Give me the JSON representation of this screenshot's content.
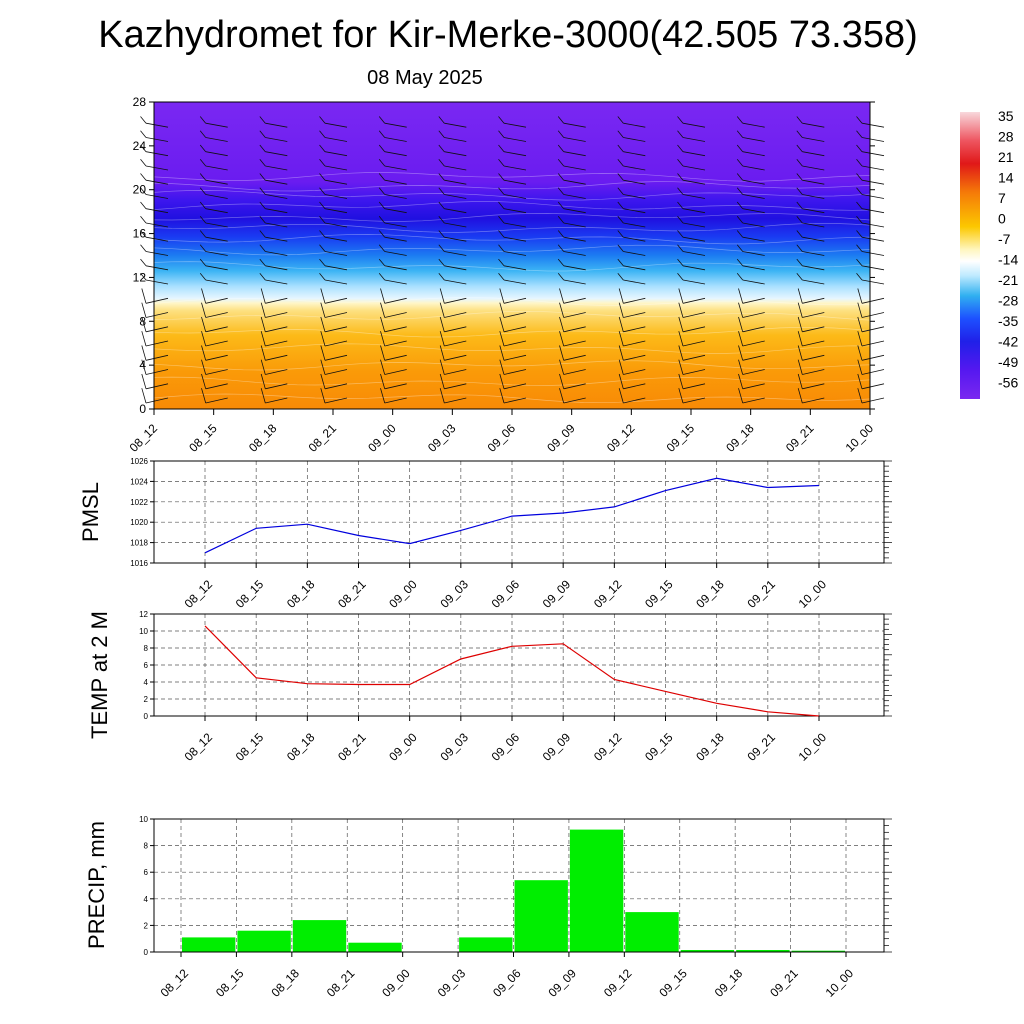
{
  "title": "Kazhydromet for Kir-Merke-3000(42.505 73.358)",
  "subtitle": "08 May 2025",
  "time_labels": [
    "08_12",
    "08_15",
    "08_18",
    "08_21",
    "09_00",
    "09_03",
    "09_06",
    "09_09",
    "09_12",
    "09_15",
    "09_18",
    "09_21",
    "10_00"
  ],
  "colors": {
    "pmsl_line": "#0000dd",
    "temp_line": "#dd0000",
    "precip_bar": "#00ee00",
    "grid": "#555555",
    "wind_barb": "#111111"
  },
  "chart_data": [
    {
      "type": "heatmap",
      "name": "cross-section",
      "ylim": [
        0,
        28
      ],
      "yticks": [
        "0",
        "4",
        "8",
        "12",
        "16",
        "20",
        "24",
        "28"
      ],
      "x": [
        "08_12",
        "08_15",
        "08_18",
        "08_21",
        "09_00",
        "09_03",
        "09_06",
        "09_09",
        "09_12",
        "09_15",
        "09_18",
        "09_21",
        "10_00"
      ],
      "colorbar": {
        "labels": [
          "35",
          "28",
          "21",
          "14",
          "7",
          "0",
          "-7",
          "-14",
          "-21",
          "-28",
          "-35",
          "-42",
          "-49",
          "-56"
        ],
        "colors": [
          "#f8d8dc",
          "#f4a0a8",
          "#ee5560",
          "#e01818",
          "#f03a10",
          "#f57a08",
          "#f9a800",
          "#fcc800",
          "#fde050",
          "#fff8b0",
          "#ffffff",
          "#d0f0ff",
          "#8ed8ff",
          "#30b0f0",
          "#1a80f0",
          "#1d50ff",
          "#2020e8",
          "#3d18f0",
          "#6018f0",
          "#7a28f0"
        ]
      },
      "wind_barbs": true
    },
    {
      "type": "line",
      "name": "PMSL",
      "ylabel": "PMSL",
      "ylim": [
        1016,
        1026
      ],
      "yticks": [
        "1016",
        "1018",
        "1020",
        "1022",
        "1024",
        "1026"
      ],
      "categories": [
        "08_12",
        "08_15",
        "08_18",
        "08_21",
        "09_00",
        "09_03",
        "09_06",
        "09_09",
        "09_12",
        "09_15",
        "09_18",
        "09_21",
        "10_00"
      ],
      "values": [
        1017.0,
        1019.4,
        1019.8,
        1018.7,
        1017.9,
        1019.2,
        1020.6,
        1020.9,
        1021.5,
        1023.1,
        1024.3,
        1023.4,
        1023.6
      ],
      "grid": true
    },
    {
      "type": "line",
      "name": "TEMP at 2 M",
      "ylabel": "TEMP at 2 M",
      "ylim": [
        0,
        12
      ],
      "yticks": [
        "0",
        "2",
        "4",
        "6",
        "8",
        "10",
        "12"
      ],
      "categories": [
        "08_12",
        "08_15",
        "08_18",
        "08_21",
        "09_00",
        "09_03",
        "09_06",
        "09_09",
        "09_12",
        "09_15",
        "09_18",
        "09_21",
        "10_00"
      ],
      "values": [
        10.6,
        4.5,
        3.8,
        3.7,
        3.7,
        6.7,
        8.2,
        8.5,
        4.3,
        2.9,
        1.5,
        0.5,
        0.0
      ],
      "grid": true
    },
    {
      "type": "bar",
      "name": "PRECIP, mm",
      "ylabel": "PRECIP, mm",
      "ylim": [
        0,
        10
      ],
      "yticks": [
        "0",
        "2",
        "4",
        "6",
        "8",
        "10"
      ],
      "categories": [
        "08_12",
        "08_15",
        "08_18",
        "08_21",
        "09_00",
        "09_03",
        "09_06",
        "09_09",
        "09_12",
        "09_15",
        "09_18",
        "09_21",
        "10_00"
      ],
      "values": [
        0,
        1.1,
        1.6,
        2.4,
        0.7,
        0,
        1.1,
        5.4,
        9.2,
        3.0,
        0.15,
        0.15,
        0.1
      ],
      "grid": true
    }
  ]
}
